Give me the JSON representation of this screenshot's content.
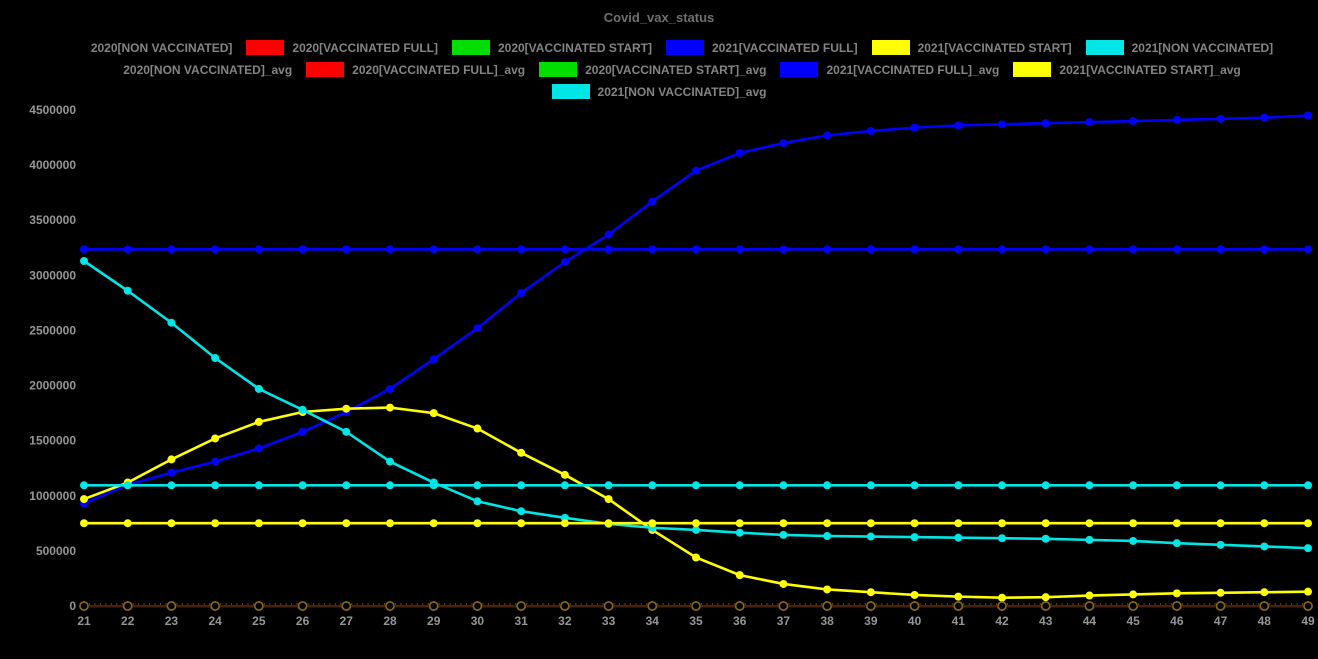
{
  "title": "Covid_vax_status",
  "colors": {
    "background": "#000000",
    "title_text": "#6f6f6f",
    "legend_text": "#848484",
    "tick_text": "#969696",
    "axis_line": "#46220a",
    "axis_minor_tick": "#7a3c10",
    "zero_marker_stroke": "#85661a"
  },
  "legend": {
    "rows": [
      [
        {
          "label": "2020[NON VACCINATED]",
          "color": "#000000"
        },
        {
          "label": "2020[VACCINATED FULL]",
          "color": "#ff0000"
        },
        {
          "label": "2020[VACCINATED START]",
          "color": "#00dd00"
        },
        {
          "label": "2021[VACCINATED FULL]",
          "color": "#0000ff"
        },
        {
          "label": "2021[VACCINATED START]",
          "color": "#ffff00"
        },
        {
          "label": "2021[NON VACCINATED]",
          "color": "#00e6e6"
        }
      ],
      [
        {
          "label": "2020[NON VACCINATED]_avg",
          "color": "#000000"
        },
        {
          "label": "2020[VACCINATED FULL]_avg",
          "color": "#ff0000"
        },
        {
          "label": "2020[VACCINATED START]_avg",
          "color": "#00dd00"
        },
        {
          "label": "2021[VACCINATED FULL]_avg",
          "color": "#0000ff"
        },
        {
          "label": "2021[VACCINATED START]_avg",
          "color": "#ffff00"
        }
      ],
      [
        {
          "label": "2021[NON VACCINATED]_avg",
          "color": "#00e6e6"
        }
      ]
    ]
  },
  "chart_data": {
    "type": "line",
    "title": "Covid_vax_status",
    "xlabel": "",
    "ylabel": "",
    "grid": false,
    "legend_position": "top",
    "x": [
      21,
      22,
      23,
      24,
      25,
      26,
      27,
      28,
      29,
      30,
      31,
      32,
      33,
      34,
      35,
      36,
      37,
      38,
      39,
      40,
      41,
      42,
      43,
      44,
      45,
      46,
      47,
      48,
      49
    ],
    "xlim": [
      21,
      49
    ],
    "ylim": [
      0,
      4500000
    ],
    "y_ticks": [
      0,
      500000,
      1000000,
      1500000,
      2000000,
      2500000,
      3000000,
      3500000,
      4000000,
      4500000
    ],
    "series": [
      {
        "name": "2020[NON VACCINATED]",
        "color": "#000000",
        "constant": 0
      },
      {
        "name": "2020[VACCINATED FULL]",
        "color": "#ff0000",
        "constant": 0
      },
      {
        "name": "2020[VACCINATED START]",
        "color": "#00dd00",
        "constant": 0
      },
      {
        "name": "2021[VACCINATED FULL]",
        "color": "#0000ff",
        "values": [
          930000,
          1100000,
          1210000,
          1310000,
          1430000,
          1580000,
          1760000,
          1970000,
          2240000,
          2520000,
          2840000,
          3120000,
          3370000,
          3670000,
          3950000,
          4110000,
          4200000,
          4270000,
          4310000,
          4340000,
          4360000,
          4370000,
          4380000,
          4390000,
          4400000,
          4410000,
          4420000,
          4430000,
          4450000
        ]
      },
      {
        "name": "2021[VACCINATED START]",
        "color": "#ffff00",
        "values": [
          970000,
          1120000,
          1330000,
          1520000,
          1670000,
          1760000,
          1790000,
          1800000,
          1750000,
          1610000,
          1390000,
          1190000,
          970000,
          690000,
          440000,
          280000,
          200000,
          150000,
          125000,
          100000,
          85000,
          75000,
          80000,
          95000,
          105000,
          115000,
          120000,
          125000,
          130000
        ]
      },
      {
        "name": "2021[NON VACCINATED]",
        "color": "#00e6e6",
        "values": [
          3130000,
          2860000,
          2570000,
          2250000,
          1970000,
          1780000,
          1580000,
          1310000,
          1120000,
          950000,
          860000,
          800000,
          745000,
          710000,
          690000,
          665000,
          645000,
          635000,
          630000,
          625000,
          620000,
          615000,
          610000,
          600000,
          590000,
          570000,
          555000,
          540000,
          525000
        ]
      },
      {
        "name": "2020[NON VACCINATED]_avg",
        "color": "#000000",
        "constant": 0
      },
      {
        "name": "2020[VACCINATED FULL]_avg",
        "color": "#ff0000",
        "constant": 0
      },
      {
        "name": "2020[VACCINATED START]_avg",
        "color": "#00dd00",
        "constant": 0
      },
      {
        "name": "2021[VACCINATED FULL]_avg",
        "color": "#0000ff",
        "constant": 3236000
      },
      {
        "name": "2021[VACCINATED START]_avg",
        "color": "#ffff00",
        "constant": 751000
      },
      {
        "name": "2021[NON VACCINATED]_avg",
        "color": "#00e6e6",
        "constant": 1095000
      }
    ]
  }
}
